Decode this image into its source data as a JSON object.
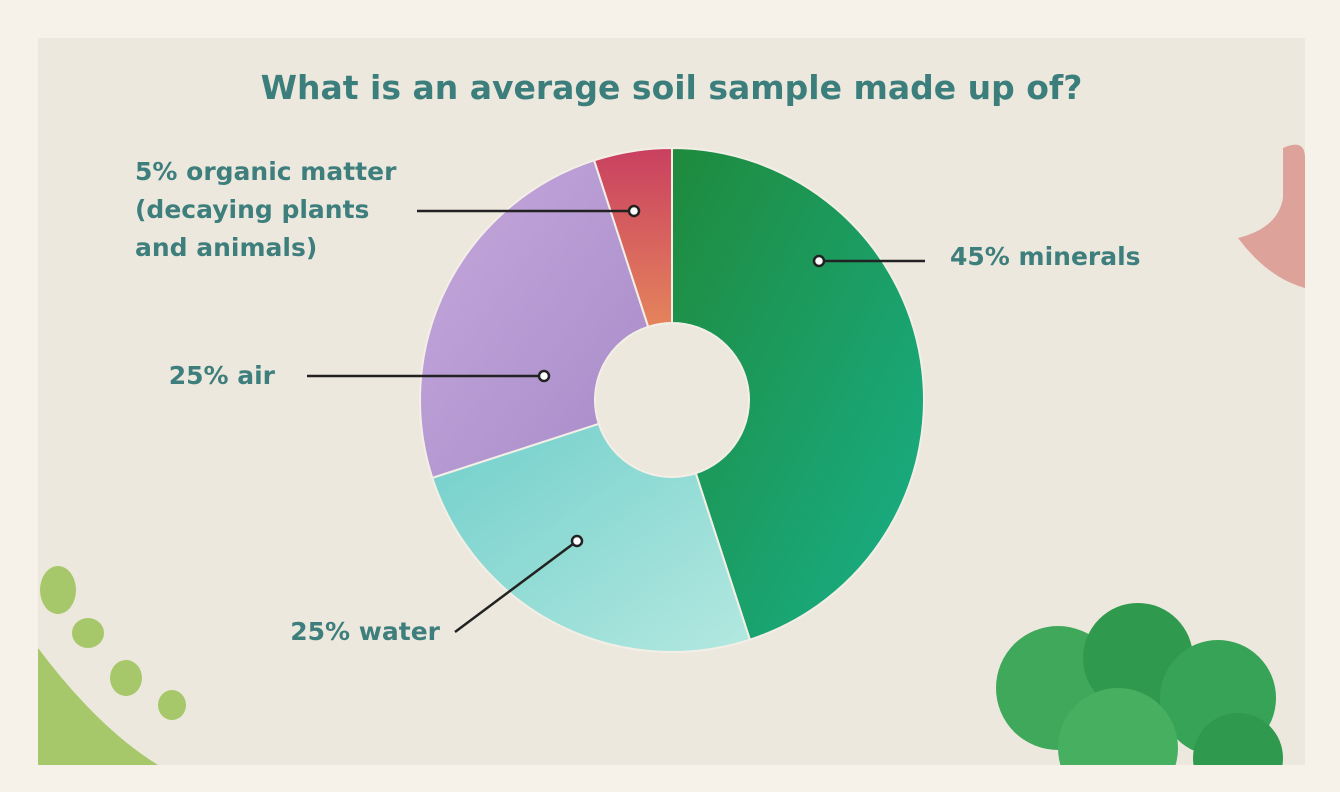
{
  "chart_data": {
    "type": "pie",
    "donut": true,
    "title": "What is an average soil sample made up of?",
    "values": [
      45,
      25,
      25,
      5
    ],
    "value_labels": [
      "45% minerals",
      "25% water",
      "25% air",
      "5% organic matter (decaying plants and animals)"
    ],
    "colors": [
      "#1e9b62",
      "#95dcd6",
      "#b79ad3",
      "#d65b5e"
    ]
  }
}
